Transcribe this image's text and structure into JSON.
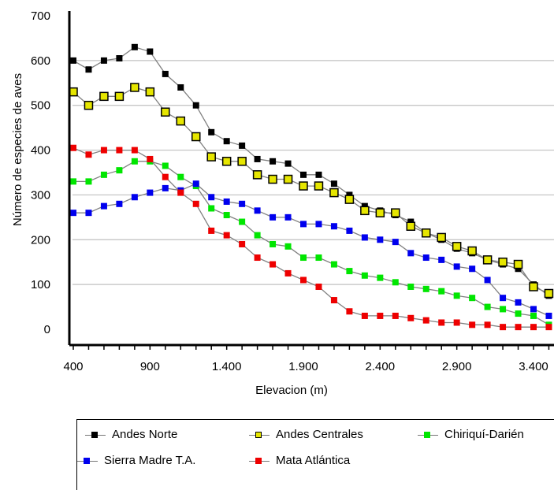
{
  "chart_data": {
    "type": "line",
    "title": "",
    "xlabel": "Elevacion (m)",
    "ylabel": "Número de especies de aves",
    "xlim": [
      370,
      3500
    ],
    "ylim": [
      -30,
      700
    ],
    "x_ticks": [
      400,
      900,
      1400,
      1900,
      2400,
      2900,
      3400
    ],
    "x_tick_labels": [
      "400",
      "900",
      "1.400",
      "1.900",
      "2.400",
      "2.900",
      "3.400"
    ],
    "y_ticks": [
      0,
      100,
      200,
      300,
      400,
      500,
      600,
      700
    ],
    "y_tick_labels": [
      "0",
      "100",
      "200",
      "300",
      "400",
      "500",
      "600",
      "700"
    ],
    "grid": true,
    "legend_position": "bottom",
    "series": [
      {
        "name": "Andes Norte",
        "color": "#000000",
        "marker": "filled-square",
        "points": [
          [
            400,
            600
          ],
          [
            500,
            580
          ],
          [
            600,
            600
          ],
          [
            700,
            605
          ],
          [
            800,
            630
          ],
          [
            900,
            620
          ],
          [
            1000,
            570
          ],
          [
            1100,
            540
          ],
          [
            1200,
            500
          ],
          [
            1300,
            440
          ],
          [
            1400,
            420
          ],
          [
            1500,
            410
          ],
          [
            1600,
            380
          ],
          [
            1700,
            375
          ],
          [
            1800,
            370
          ],
          [
            1900,
            345
          ],
          [
            2000,
            345
          ],
          [
            2100,
            325
          ],
          [
            2200,
            300
          ],
          [
            2300,
            275
          ],
          [
            2400,
            265
          ],
          [
            2500,
            255
          ],
          [
            2600,
            240
          ],
          [
            2700,
            215
          ],
          [
            2800,
            200
          ],
          [
            2900,
            180
          ],
          [
            3000,
            170
          ],
          [
            3100,
            155
          ],
          [
            3200,
            145
          ],
          [
            3300,
            135
          ],
          [
            3400,
            100
          ],
          [
            3500,
            75
          ]
        ]
      },
      {
        "name": "Andes Centrales",
        "color": "#e6e600",
        "marker": "hollow-square",
        "points": [
          [
            400,
            530
          ],
          [
            500,
            500
          ],
          [
            600,
            520
          ],
          [
            700,
            520
          ],
          [
            800,
            540
          ],
          [
            900,
            530
          ],
          [
            1000,
            485
          ],
          [
            1100,
            465
          ],
          [
            1200,
            430
          ],
          [
            1300,
            385
          ],
          [
            1400,
            375
          ],
          [
            1500,
            375
          ],
          [
            1600,
            345
          ],
          [
            1700,
            335
          ],
          [
            1800,
            335
          ],
          [
            1900,
            320
          ],
          [
            2000,
            320
          ],
          [
            2100,
            305
          ],
          [
            2200,
            290
          ],
          [
            2300,
            265
          ],
          [
            2400,
            260
          ],
          [
            2500,
            260
          ],
          [
            2600,
            230
          ],
          [
            2700,
            215
          ],
          [
            2800,
            205
          ],
          [
            2900,
            185
          ],
          [
            3000,
            175
          ],
          [
            3100,
            155
          ],
          [
            3200,
            150
          ],
          [
            3300,
            145
          ],
          [
            3400,
            95
          ],
          [
            3500,
            80
          ]
        ]
      },
      {
        "name": "Chiriquí-Darién",
        "color": "#00e600",
        "marker": "filled-square",
        "points": [
          [
            400,
            330
          ],
          [
            500,
            330
          ],
          [
            600,
            345
          ],
          [
            700,
            355
          ],
          [
            800,
            375
          ],
          [
            900,
            375
          ],
          [
            1000,
            365
          ],
          [
            1100,
            340
          ],
          [
            1200,
            320
          ],
          [
            1300,
            270
          ],
          [
            1400,
            255
          ],
          [
            1500,
            240
          ],
          [
            1600,
            210
          ],
          [
            1700,
            190
          ],
          [
            1800,
            185
          ],
          [
            1900,
            160
          ],
          [
            2000,
            160
          ],
          [
            2100,
            145
          ],
          [
            2200,
            130
          ],
          [
            2300,
            120
          ],
          [
            2400,
            115
          ],
          [
            2500,
            105
          ],
          [
            2600,
            95
          ],
          [
            2700,
            90
          ],
          [
            2800,
            85
          ],
          [
            2900,
            75
          ],
          [
            3000,
            70
          ],
          [
            3100,
            50
          ],
          [
            3200,
            45
          ],
          [
            3300,
            35
          ],
          [
            3400,
            30
          ],
          [
            3500,
            10
          ]
        ]
      },
      {
        "name": "Sierra Madre T.A.",
        "color": "#0000ee",
        "marker": "filled-square",
        "points": [
          [
            400,
            260
          ],
          [
            500,
            260
          ],
          [
            600,
            275
          ],
          [
            700,
            280
          ],
          [
            800,
            295
          ],
          [
            900,
            305
          ],
          [
            1000,
            315
          ],
          [
            1100,
            310
          ],
          [
            1200,
            325
          ],
          [
            1300,
            295
          ],
          [
            1400,
            285
          ],
          [
            1500,
            280
          ],
          [
            1600,
            265
          ],
          [
            1700,
            250
          ],
          [
            1800,
            250
          ],
          [
            1900,
            235
          ],
          [
            2000,
            235
          ],
          [
            2100,
            230
          ],
          [
            2200,
            220
          ],
          [
            2300,
            205
          ],
          [
            2400,
            200
          ],
          [
            2500,
            195
          ],
          [
            2600,
            170
          ],
          [
            2700,
            160
          ],
          [
            2800,
            155
          ],
          [
            2900,
            140
          ],
          [
            3000,
            135
          ],
          [
            3100,
            110
          ],
          [
            3200,
            70
          ],
          [
            3300,
            60
          ],
          [
            3400,
            45
          ],
          [
            3500,
            30
          ]
        ]
      },
      {
        "name": "Mata Atlántica",
        "color": "#ee0000",
        "marker": "filled-square",
        "points": [
          [
            400,
            405
          ],
          [
            500,
            390
          ],
          [
            600,
            400
          ],
          [
            700,
            400
          ],
          [
            800,
            400
          ],
          [
            900,
            380
          ],
          [
            1000,
            340
          ],
          [
            1100,
            305
          ],
          [
            1200,
            280
          ],
          [
            1300,
            220
          ],
          [
            1400,
            210
          ],
          [
            1500,
            190
          ],
          [
            1600,
            160
          ],
          [
            1700,
            145
          ],
          [
            1800,
            125
          ],
          [
            1900,
            110
          ],
          [
            2000,
            95
          ],
          [
            2100,
            65
          ],
          [
            2200,
            40
          ],
          [
            2300,
            30
          ],
          [
            2400,
            30
          ],
          [
            2500,
            30
          ],
          [
            2600,
            25
          ],
          [
            2700,
            20
          ],
          [
            2800,
            15
          ],
          [
            2900,
            15
          ],
          [
            3000,
            10
          ],
          [
            3100,
            10
          ],
          [
            3200,
            5
          ],
          [
            3300,
            5
          ],
          [
            3400,
            5
          ],
          [
            3500,
            5
          ]
        ]
      }
    ]
  },
  "legend": {
    "items": [
      {
        "label": "Andes Norte",
        "color": "#000000",
        "hollow": false
      },
      {
        "label": "Andes Centrales",
        "color": "#e6e600",
        "hollow": true
      },
      {
        "label": "Chiriquí-Darién",
        "color": "#00e600",
        "hollow": false
      },
      {
        "label": "Sierra Madre T.A.",
        "color": "#0000ee",
        "hollow": false
      },
      {
        "label": "Mata Atlántica",
        "color": "#ee0000",
        "hollow": false
      }
    ]
  }
}
